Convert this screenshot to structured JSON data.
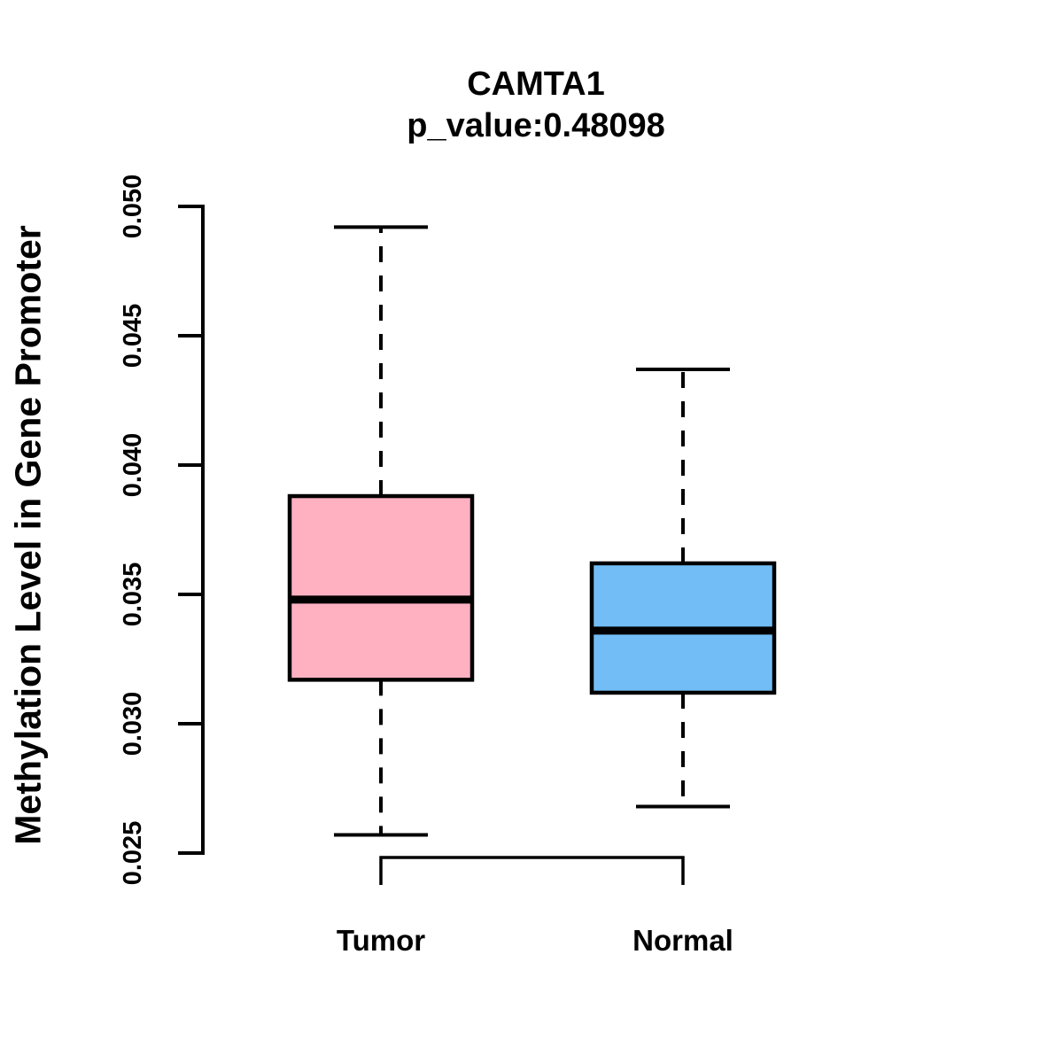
{
  "figure": {
    "background_color": "#FFFFFF",
    "text_color": "#000000"
  },
  "chart_data": {
    "type": "boxplot",
    "title": "CAMTA1",
    "subtitle": "p_value:0.48098",
    "xlabel": "",
    "ylabel": "Methylation Level in Gene Promoter",
    "categories": [
      "Tumor",
      "Normal"
    ],
    "series": [
      {
        "name": "Tumor",
        "fill_color": "#FFB1C1",
        "whisker_low": 0.0257,
        "q1": 0.0317,
        "median": 0.0348,
        "q3": 0.0388,
        "whisker_high": 0.0492
      },
      {
        "name": "Normal",
        "fill_color": "#72BDF6",
        "whisker_low": 0.0268,
        "q1": 0.0312,
        "median": 0.0336,
        "q3": 0.0362,
        "whisker_high": 0.0437
      }
    ],
    "ylim": [
      0.025,
      0.05
    ],
    "yticks": [
      "0.025",
      "0.030",
      "0.035",
      "0.040",
      "0.045",
      "0.050"
    ],
    "grid": false,
    "legend_position": "none",
    "stroke_color": "#000000"
  }
}
